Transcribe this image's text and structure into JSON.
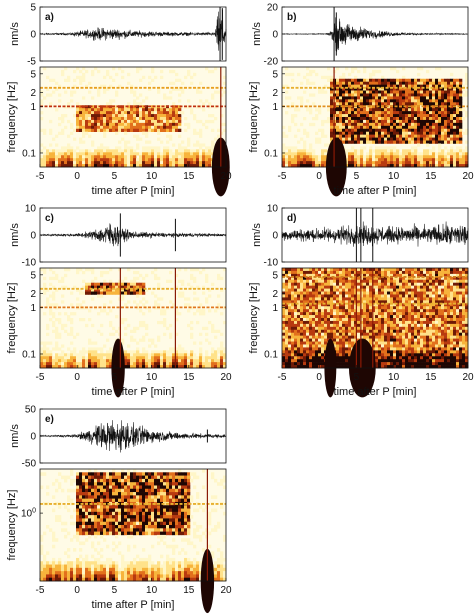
{
  "chart_data": [
    {
      "id": "a",
      "label": "a)",
      "type": "heatmap",
      "seismogram": {
        "ylabel": "nm/s",
        "yticks": [
          5,
          0,
          -5
        ],
        "ylim": [
          -5,
          5
        ],
        "envelope": [
          [
            -5,
            0.15
          ],
          [
            -1,
            0.2
          ],
          [
            0,
            0.5
          ],
          [
            2,
            0.9
          ],
          [
            3,
            1.2
          ],
          [
            5,
            1.0
          ],
          [
            8,
            0.6
          ],
          [
            12,
            0.4
          ],
          [
            16,
            0.3
          ],
          [
            18.5,
            0.3
          ],
          [
            19.1,
            5
          ],
          [
            19.6,
            4.5
          ],
          [
            20,
            0.8
          ]
        ],
        "spikes": [
          [
            19.2,
            5
          ],
          [
            19.5,
            4.8
          ]
        ]
      },
      "spectrogram": {
        "ylabel": "frequency [Hz]",
        "yscale": "log",
        "ylim": [
          0.05,
          7
        ],
        "yticks": [
          5,
          2,
          1,
          0.1
        ],
        "ytick_labels": [
          "5",
          "2",
          "1",
          "0.1"
        ],
        "lines": [
          {
            "freq": 1.0,
            "color": "#c03010"
          },
          {
            "freq": 2.5,
            "color": "#e8a020"
          }
        ],
        "cloud": {
          "t0": 0,
          "t1": 14,
          "f0": 0.3,
          "f1": 1.0,
          "strength": 0.6
        },
        "spikes_t": [
          19.3
        ],
        "blobs": [
          [
            19.3,
            0.06,
            1.2
          ]
        ]
      },
      "xlabel": "time after P [min]",
      "xlim": [
        -5,
        20
      ],
      "xticks": [
        -5,
        0,
        5,
        10,
        15,
        20
      ]
    },
    {
      "id": "b",
      "label": "b)",
      "type": "heatmap",
      "seismogram": {
        "ylabel": "nm/s",
        "yticks": [
          20,
          0,
          -20
        ],
        "ylim": [
          -20,
          20
        ],
        "envelope": [
          [
            -5,
            0.2
          ],
          [
            1,
            0.3
          ],
          [
            1.8,
            4
          ],
          [
            2.3,
            13
          ],
          [
            3,
            9
          ],
          [
            5,
            6
          ],
          [
            7,
            3.5
          ],
          [
            10,
            1.5
          ],
          [
            14,
            0.6
          ],
          [
            20,
            0.3
          ]
        ],
        "spikes": [
          [
            2.0,
            20
          ],
          [
            2.3,
            16
          ]
        ]
      },
      "spectrogram": {
        "ylabel": "frequency [Hz]",
        "yscale": "log",
        "ylim": [
          0.05,
          7
        ],
        "yticks": [
          5,
          2,
          1,
          0.1
        ],
        "ytick_labels": [
          "5",
          "2",
          "1",
          "0.1"
        ],
        "lines": [
          {
            "freq": 1.0,
            "color": "#e09020"
          },
          {
            "freq": 2.5,
            "color": "#e8b030"
          }
        ],
        "cloud": {
          "t0": 1.5,
          "t1": 19,
          "f0": 0.15,
          "f1": 4.0,
          "strength": 0.85
        },
        "spikes_t": [
          2.0
        ],
        "blobs": [
          [
            2.3,
            0.06,
            1.4
          ]
        ]
      },
      "xlabel": "time after P [min]",
      "xlim": [
        -5,
        20
      ],
      "xticks": [
        -5,
        0,
        5,
        10,
        15,
        20
      ]
    },
    {
      "id": "c",
      "label": "c)",
      "type": "heatmap",
      "seismogram": {
        "ylabel": "nm/s",
        "yticks": [
          10,
          0,
          -10
        ],
        "ylim": [
          -10,
          10
        ],
        "envelope": [
          [
            -5,
            0.3
          ],
          [
            0,
            0.5
          ],
          [
            2,
            1.5
          ],
          [
            3.5,
            3.5
          ],
          [
            4.5,
            5
          ],
          [
            6,
            2.5
          ],
          [
            8,
            1.2
          ],
          [
            12,
            0.8
          ],
          [
            20,
            0.5
          ]
        ],
        "spikes": [
          [
            5.8,
            8
          ],
          [
            13.2,
            6
          ]
        ]
      },
      "spectrogram": {
        "ylabel": "frequency [Hz]",
        "yscale": "log",
        "ylim": [
          0.05,
          7
        ],
        "yticks": [
          5,
          2,
          1,
          0.1
        ],
        "ytick_labels": [
          "5",
          "2",
          "1",
          "0.1"
        ],
        "lines": [
          {
            "freq": 1.0,
            "color": "#e07820"
          },
          {
            "freq": 2.5,
            "color": "#e8b030"
          }
        ],
        "cloud": {
          "t0": 1,
          "t1": 9,
          "f0": 2.0,
          "f1": 3.3,
          "strength": 0.8
        },
        "spikes_t": [
          5.8,
          13.2
        ],
        "blobs": [
          [
            5.5,
            0.06,
            0.9
          ]
        ]
      },
      "xlabel": "time after P [min]",
      "xlim": [
        -5,
        20
      ],
      "xticks": [
        -5,
        0,
        5,
        10,
        15,
        20
      ]
    },
    {
      "id": "d",
      "label": "d)",
      "type": "heatmap",
      "seismogram": {
        "ylabel": "nm/s",
        "yticks": [
          10,
          0,
          -10
        ],
        "ylim": [
          -10,
          10
        ],
        "envelope": [
          [
            -5,
            2
          ],
          [
            0,
            2.5
          ],
          [
            4,
            3.5
          ],
          [
            6,
            4
          ],
          [
            10,
            3
          ],
          [
            15,
            3.5
          ],
          [
            20,
            4.5
          ]
        ],
        "spikes": [
          [
            5.0,
            10
          ],
          [
            5.6,
            10
          ],
          [
            7.2,
            10
          ]
        ]
      },
      "spectrogram": {
        "ylabel": "frequency [Hz]",
        "yscale": "log",
        "ylim": [
          0.05,
          7
        ],
        "yticks": [
          5,
          2,
          1,
          0.1
        ],
        "ytick_labels": [
          "5",
          "2",
          "1",
          "0.1"
        ],
        "lines": [
          {
            "freq": 4.5,
            "color": "#d08020"
          },
          {
            "freq": 1.2,
            "color": "#e8b030"
          }
        ],
        "cloud": {
          "t0": -5,
          "t1": 20,
          "f0": 0.05,
          "f1": 7.0,
          "strength": 0.65
        },
        "spikes_t": [
          5.0,
          5.6,
          7.2
        ],
        "blobs": [
          [
            5.8,
            0.06,
            1.8
          ],
          [
            1.5,
            0.06,
            0.8
          ]
        ]
      },
      "xlabel": "time after P [min]",
      "xlim": [
        -5,
        20
      ],
      "xticks": [
        -5,
        0,
        5,
        10,
        15,
        20
      ]
    },
    {
      "id": "e",
      "label": "e)",
      "type": "heatmap",
      "seismogram": {
        "ylabel": "nm/s",
        "yticks": [
          50,
          0,
          -50
        ],
        "ylim": [
          -50,
          50
        ],
        "envelope": [
          [
            -5,
            1
          ],
          [
            0,
            3
          ],
          [
            2,
            15
          ],
          [
            4,
            30
          ],
          [
            5.5,
            32
          ],
          [
            8,
            20
          ],
          [
            11,
            10
          ],
          [
            15,
            5
          ],
          [
            20,
            3
          ]
        ],
        "spikes": [
          [
            17.5,
            12
          ]
        ]
      },
      "spectrogram": {
        "ylabel": "frequency [Hz]",
        "yscale": "log",
        "ylim": [
          0.05,
          7
        ],
        "yticks": [
          1
        ],
        "ytick_labels": [
          "10^0"
        ],
        "lines": [
          {
            "freq": 1.5,
            "color": "#e8b030"
          }
        ],
        "cloud": {
          "t0": 0,
          "t1": 15,
          "f0": 0.4,
          "f1": 6.0,
          "strength": 0.9
        },
        "spikes_t": [
          17.5
        ],
        "blobs": [
          [
            17.5,
            0.06,
            0.9
          ]
        ]
      },
      "xlabel": "time after P [min]",
      "xlim": [
        -5,
        20
      ],
      "xticks": [
        -5,
        0,
        5,
        10,
        15,
        20
      ]
    }
  ]
}
